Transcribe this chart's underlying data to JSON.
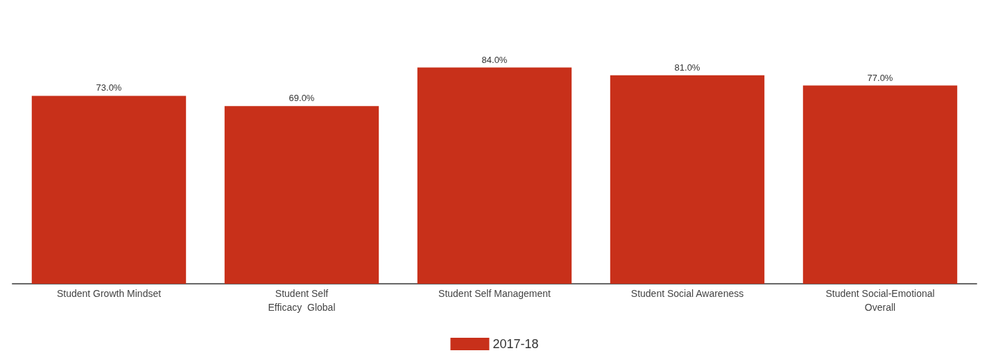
{
  "chart_data": {
    "type": "bar",
    "categories": [
      "Student Growth Mindset",
      "Student Self\nEfficacy  Global",
      "Student Self Management",
      "Student Social Awareness",
      "Student Social-Emotional\nOverall"
    ],
    "series": [
      {
        "name": "2017-18",
        "color": "#c8301a",
        "values": [
          73,
          69,
          84,
          81,
          77
        ],
        "value_labels": [
          "73.0%",
          "69.0%",
          "84.0%",
          "81.0%",
          "77.0%"
        ]
      }
    ],
    "legend": "bottom",
    "grid": false
  }
}
